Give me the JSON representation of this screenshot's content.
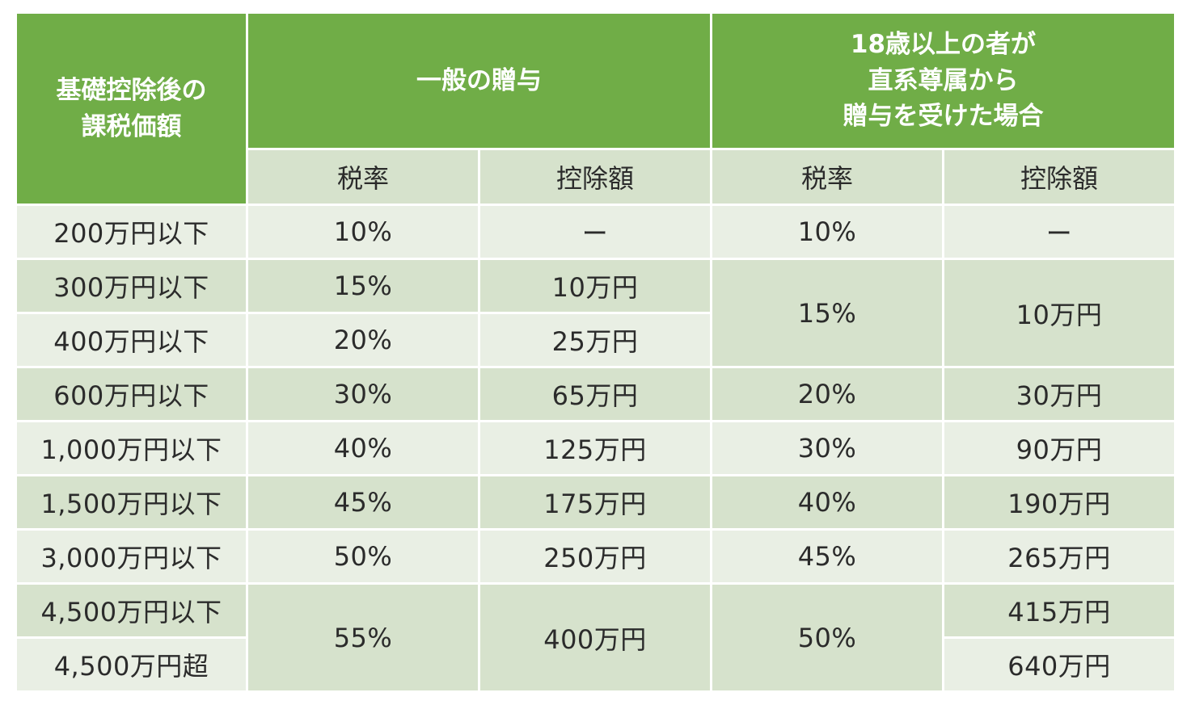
{
  "header": {
    "base": [
      "基礎控除後の",
      "課税価額"
    ],
    "general": "一般の贈与",
    "special": [
      "18歳以上の者が",
      "直系尊属から",
      "贈与を受けた場合"
    ],
    "rate": "税率",
    "deduction": "控除額"
  },
  "rows": [
    {
      "amount": "200万円以下",
      "g_rate": "10%",
      "g_ded": "ー",
      "s_rate": "10%",
      "s_ded": "ー"
    },
    {
      "amount": "300万円以下",
      "g_rate": "15%",
      "g_ded": "10万円",
      "s_rate": "15%",
      "s_ded": "10万円"
    },
    {
      "amount": "400万円以下",
      "g_rate": "20%",
      "g_ded": "25万円"
    },
    {
      "amount": "600万円以下",
      "g_rate": "30%",
      "g_ded": "65万円",
      "s_rate": "20%",
      "s_ded": "30万円"
    },
    {
      "amount": "1,000万円以下",
      "g_rate": "40%",
      "g_ded": "125万円",
      "s_rate": "30%",
      "s_ded": "90万円"
    },
    {
      "amount": "1,500万円以下",
      "g_rate": "45%",
      "g_ded": "175万円",
      "s_rate": "40%",
      "s_ded": "190万円"
    },
    {
      "amount": "3,000万円以下",
      "g_rate": "50%",
      "g_ded": "250万円",
      "s_rate": "45%",
      "s_ded": "265万円"
    },
    {
      "amount": "4,500万円以下",
      "g_rate": "55%",
      "g_ded": "400万円",
      "s_rate": "50%",
      "s_ded": "415万円"
    },
    {
      "amount": "4,500万円超",
      "s_ded": "640万円"
    }
  ],
  "colors": {
    "header": "#70ad47",
    "row_dark": "#d6e2cc",
    "row_light": "#e9efe4"
  }
}
